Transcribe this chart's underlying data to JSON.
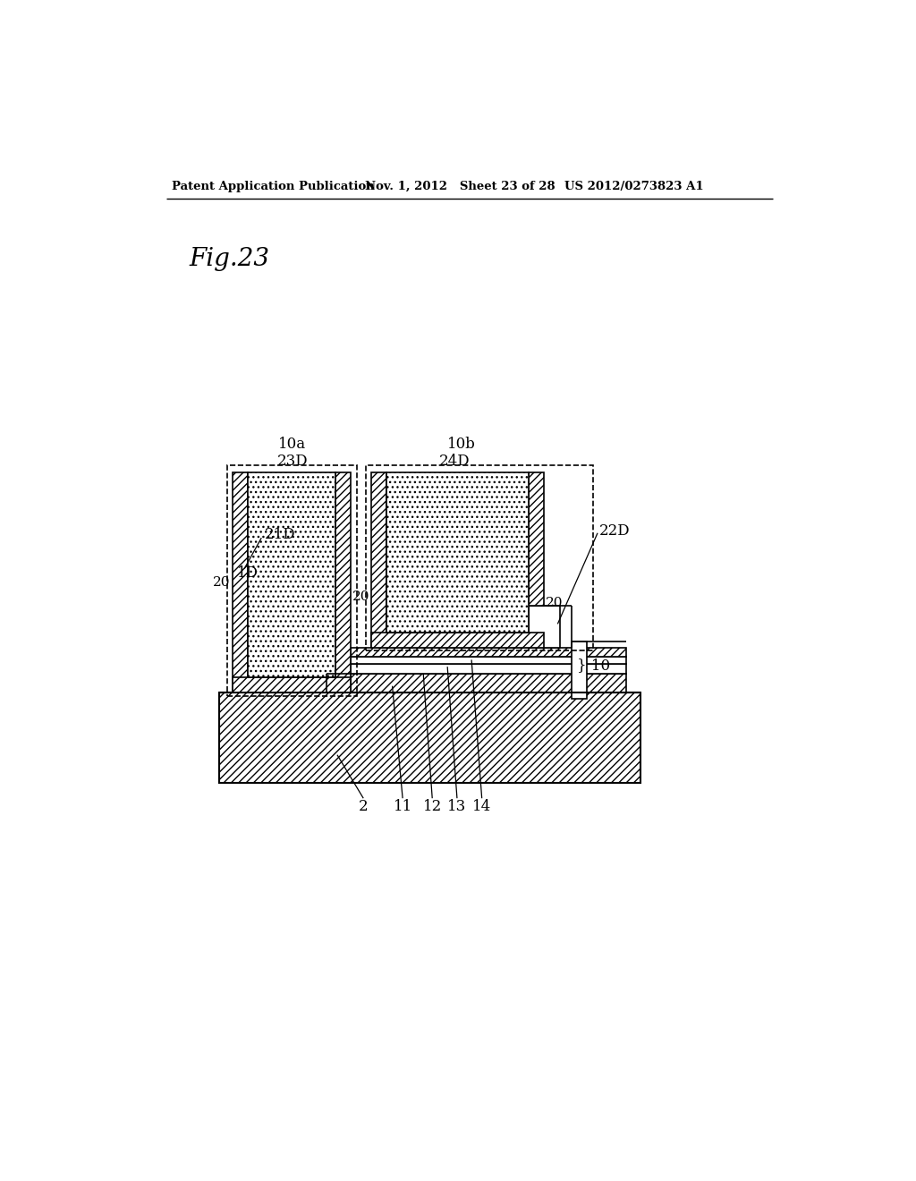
{
  "bg_color": "#ffffff",
  "header_left": "Patent Application Publication",
  "header_mid": "Nov. 1, 2012   Sheet 23 of 28",
  "header_right": "US 2012/0273823 A1",
  "fig_label": "Fig.23"
}
